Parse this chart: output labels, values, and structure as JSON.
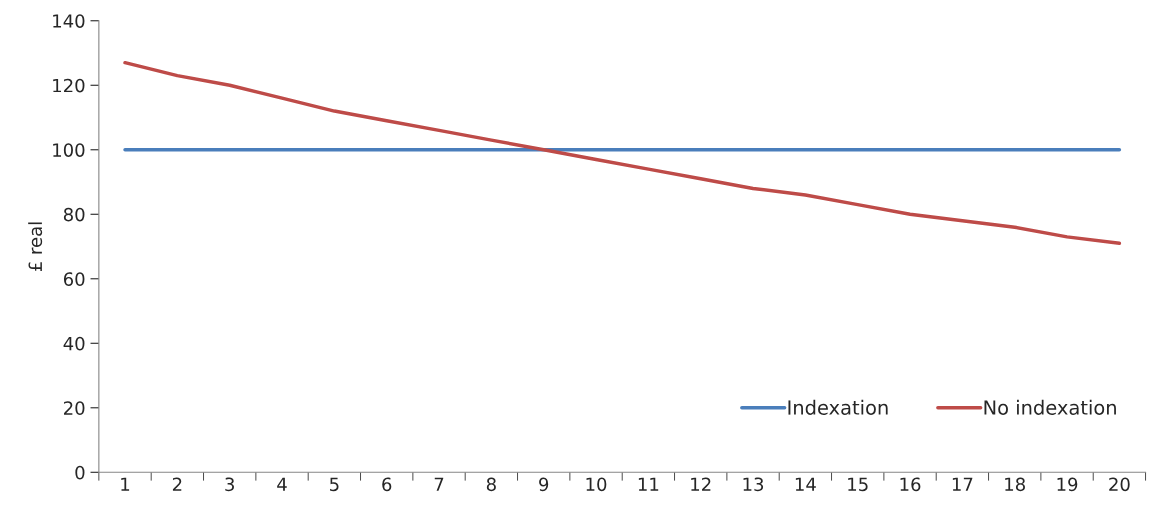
{
  "chart_data": {
    "type": "line",
    "ylabel": "£ real",
    "categories": [
      "1",
      "2",
      "3",
      "4",
      "5",
      "6",
      "7",
      "8",
      "9",
      "10",
      "11",
      "12",
      "13",
      "14",
      "15",
      "16",
      "17",
      "18",
      "19",
      "20"
    ],
    "series": [
      {
        "name": "Indexation",
        "color": "#4a7ebb",
        "values": [
          100,
          100,
          100,
          100,
          100,
          100,
          100,
          100,
          100,
          100,
          100,
          100,
          100,
          100,
          100,
          100,
          100,
          100,
          100,
          100
        ]
      },
      {
        "name": "No indexation",
        "color": "#be4b48",
        "values": [
          127,
          123,
          120,
          116,
          112,
          109,
          106,
          103,
          100,
          97,
          94,
          91,
          88,
          86,
          83,
          80,
          78,
          76,
          73,
          71
        ]
      }
    ],
    "ylim": [
      0,
      140
    ],
    "yticks": [
      0,
      20,
      40,
      60,
      80,
      100,
      120,
      140
    ],
    "grid": false,
    "legend": "bottom right",
    "marker": "none",
    "line_style": "solid"
  }
}
